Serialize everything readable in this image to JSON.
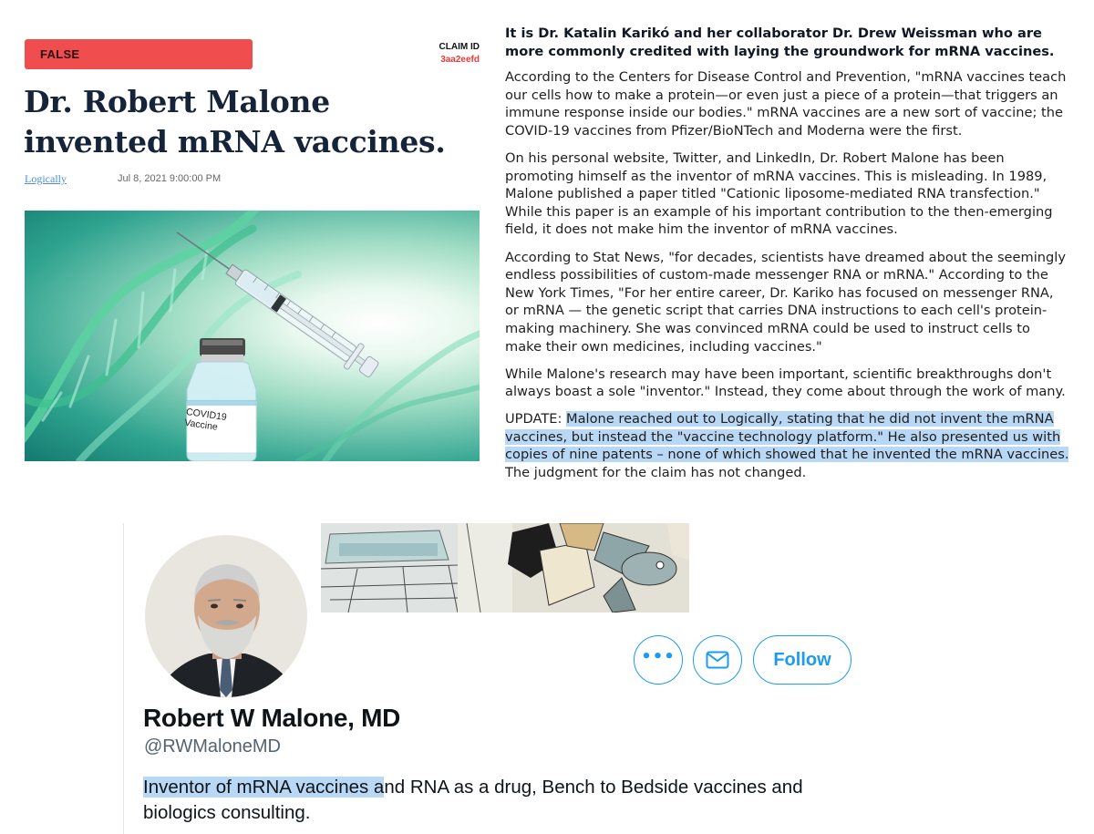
{
  "article": {
    "verdict": "FALSE",
    "claim_id_label": "CLAIM ID",
    "claim_id": "3aa2eefd",
    "headline": "Dr. Robert Malone invented mRNA vaccines.",
    "author": "Logically",
    "date": "Jul 8, 2021 9:00:00 PM",
    "image_label": "COVID19 Vaccine",
    "verdict_color": "#f04d4f"
  },
  "body": {
    "lead": "It is Dr. Katalin Karikó and her collaborator Dr. Drew Weissman who are more commonly credited with laying the groundwork for mRNA vaccines.",
    "p1": "According to the Centers for Disease Control and Prevention, \"mRNA vaccines teach our cells how to make a protein—or even just a piece of a protein—that triggers an immune response inside our bodies.\" mRNA vaccines are a new sort of vaccine; the COVID-19 vaccines from Pfizer/BioNTech and Moderna were the first.",
    "p2": "On his personal website, Twitter, and LinkedIn, Dr. Robert Malone has been promoting himself as the inventor of mRNA vaccines. This is misleading. In 1989, Malone published a paper titled \"Cationic liposome-mediated RNA transfection.\" While this paper is an example of his important contribution to the then-emerging field, it does not make him the inventor of mRNA vaccines.",
    "p3": "According to Stat News, \"for decades, scientists have dreamed about the seemingly endless possibilities of custom-made messenger RNA or mRNA.\" According to the New York Times, \"For her entire career, Dr. Kariko has focused on messenger RNA, or mRNA — the genetic script that carries DNA instructions to each cell's protein-making machinery. She was convinced mRNA could be used to instruct cells to make their own medicines, including vaccines.\"",
    "p4": "While Malone's research may have been important, scientific breakthroughs don't always boast a sole \"inventor.\" Instead, they come about through the work of many.",
    "update_prefix": "UPDATE: ",
    "update_highlight": "Malone reached out to Logically, stating that he did not invent the mRNA vaccines, but instead the \"vaccine technology platform.\" He also presented us with copies of nine patents – none of which showed that he invented the mRNA vaccines.",
    "update_suffix": " The judgment for the claim has not changed.",
    "highlight_color": "#b9d8f5"
  },
  "profile": {
    "name": "Robert W Malone, MD",
    "handle": "@RWMaloneMD",
    "bio_highlight": "Inventor of mRNA vaccines a",
    "bio_rest": "nd RNA as a drug, Bench to Bedside vaccines and biologics consulting.",
    "follow_label": "Follow",
    "more_label": "•••",
    "accent_color": "#1d9bf0",
    "icons": [
      "more-icon",
      "mail-icon"
    ]
  }
}
